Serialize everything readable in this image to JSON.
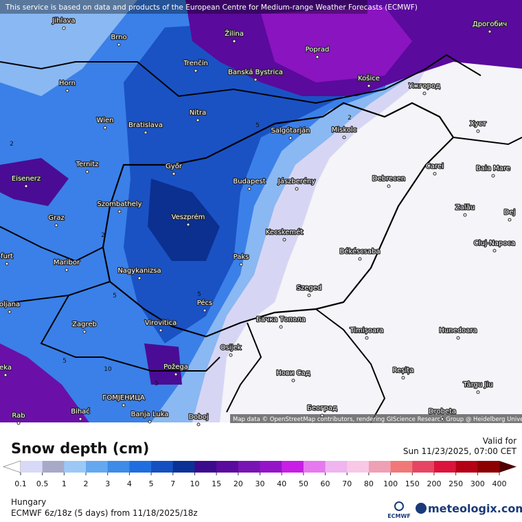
{
  "map": {
    "notice": "This service is based on data and products of the European Centre for Medium-range Weather Forecasts (ECMWF)",
    "attribution": "Map data © OpenStreetMap contributors, rendering GIScience Research Group @ Heidelberg University",
    "cities": [
      "Jihlava",
      "Brno",
      "Žilina",
      "Poprad",
      "Дрогобич",
      "Trenčín",
      "Banská Bystrica",
      "Košice",
      "Horn",
      "Ужгород",
      "Wien",
      "Bratislava",
      "Nitra",
      "Salgótarján",
      "Miskolc",
      "Хуст",
      "Ternitz",
      "Győr",
      "Eisenerz",
      "Budapest",
      "Jászberény",
      "Debrecen",
      "Carei",
      "Baia Mare",
      "Szombathely",
      "Graz",
      "Veszprém",
      "Zalău",
      "Dej",
      "Kecskemét",
      "Cluj-Napoca",
      "Paks",
      "Békéscsaba",
      "Maribor",
      "Nagykanizsa",
      "Szeged",
      "Pécs",
      "oljana",
      "Zagreb",
      "Virovitica",
      "Бачка Топола",
      "Timișoara",
      "Hunedoara",
      "Osijek",
      "Požega",
      "Нови Сад",
      "Reșița",
      "Târgu Jiu",
      "ГОМЈЕНИЦА",
      "Bihać",
      "Banja Luka",
      "Doboj",
      "Београд",
      "Drobeta",
      "furt",
      "eka",
      "Rab"
    ],
    "contour_labels": [
      "2",
      "2",
      "5",
      "5",
      "5",
      "5",
      "10",
      "2",
      "5"
    ]
  },
  "legend": {
    "title": "Snow depth (cm)",
    "ticks": [
      0.1,
      0.5,
      1,
      2,
      3,
      4,
      5,
      7,
      10,
      15,
      20,
      30,
      40,
      50,
      60,
      70,
      80,
      100,
      150,
      200,
      250,
      300,
      400
    ],
    "colors": [
      "#d8d8f8",
      "#a8a8c8",
      "#9cc8f8",
      "#64a8f0",
      "#3c8ce8",
      "#1e6ee0",
      "#1450c0",
      "#0a3296",
      "#3c0a8c",
      "#5a0a9c",
      "#7814b4",
      "#9614c8",
      "#c81ee6",
      "#e678f0",
      "#f0b4f0",
      "#f8c8e6",
      "#f0a0b4",
      "#f07878",
      "#e64664",
      "#dc143c",
      "#b40014",
      "#8c0000"
    ],
    "under_color": "#ffffff",
    "over_color": "#500000"
  },
  "valid": {
    "label": "Valid for",
    "time": "Sun 11/23/2025, 07:00 CET"
  },
  "footer": {
    "region": "Hungary",
    "model": "ECMWF 6z/18z (5 days) from 11/18/2025/18z"
  },
  "logos": {
    "ecmwf": "ECMWF",
    "meteologix": "meteologix.com"
  }
}
